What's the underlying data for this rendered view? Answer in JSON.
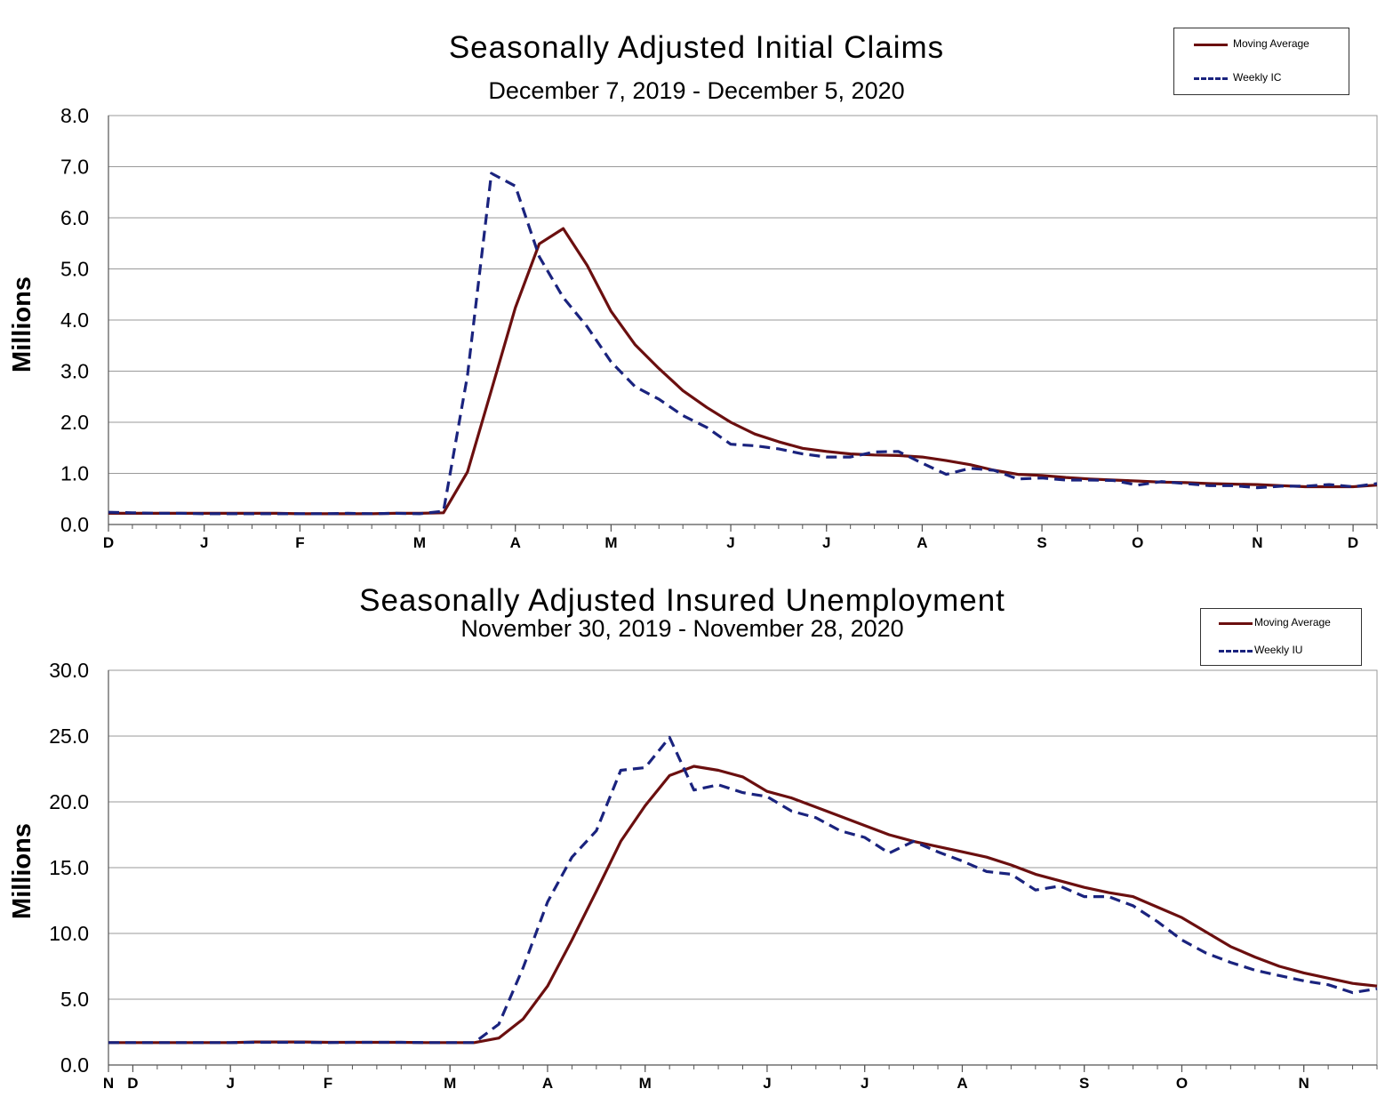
{
  "colors": {
    "moving_average": "#6b0f0f",
    "weekly": "#1a237e",
    "grid": "#9a9a9a",
    "axis": "#555555"
  },
  "chart_data": [
    {
      "type": "line",
      "title": "Seasonally Adjusted Initial Claims",
      "subtitle": "December 7, 2019 - December 5, 2020",
      "ylabel": "Millions",
      "xlabel": "",
      "ylim": [
        0,
        8
      ],
      "yticks": [
        "0.0",
        "1.0",
        "2.0",
        "3.0",
        "4.0",
        "5.0",
        "6.0",
        "7.0",
        "8.0"
      ],
      "grid": true,
      "legend_position": "top-right",
      "x_month_ticks": [
        {
          "label": "D",
          "week": 0
        },
        {
          "label": "J",
          "week": 4
        },
        {
          "label": "F",
          "week": 8
        },
        {
          "label": "M",
          "week": 13
        },
        {
          "label": "A",
          "week": 17
        },
        {
          "label": "M",
          "week": 21
        },
        {
          "label": "J",
          "week": 26
        },
        {
          "label": "J",
          "week": 30
        },
        {
          "label": "A",
          "week": 34
        },
        {
          "label": "S",
          "week": 39
        },
        {
          "label": "O",
          "week": 43
        },
        {
          "label": "N",
          "week": 48
        },
        {
          "label": "D",
          "week": 52
        }
      ],
      "series": [
        {
          "name": "Moving Average",
          "style": "solid",
          "values": [
            0.22,
            0.22,
            0.22,
            0.22,
            0.22,
            0.22,
            0.22,
            0.22,
            0.21,
            0.21,
            0.21,
            0.21,
            0.22,
            0.22,
            0.23,
            1.03,
            2.63,
            4.24,
            5.49,
            5.79,
            5.07,
            4.17,
            3.52,
            3.05,
            2.62,
            2.29,
            2.0,
            1.77,
            1.62,
            1.49,
            1.43,
            1.38,
            1.36,
            1.35,
            1.32,
            1.25,
            1.17,
            1.06,
            0.98,
            0.96,
            0.92,
            0.89,
            0.87,
            0.85,
            0.83,
            0.82,
            0.8,
            0.79,
            0.78,
            0.76,
            0.74,
            0.74,
            0.74,
            0.77
          ]
        },
        {
          "name": "Weekly IC",
          "style": "dashed",
          "values": [
            0.24,
            0.23,
            0.22,
            0.22,
            0.21,
            0.21,
            0.21,
            0.21,
            0.21,
            0.21,
            0.22,
            0.21,
            0.22,
            0.21,
            0.26,
            2.92,
            6.87,
            6.62,
            5.24,
            4.44,
            3.87,
            3.18,
            2.7,
            2.45,
            2.13,
            1.9,
            1.57,
            1.54,
            1.48,
            1.38,
            1.32,
            1.32,
            1.42,
            1.43,
            1.2,
            0.98,
            1.1,
            1.06,
            0.89,
            0.91,
            0.87,
            0.87,
            0.86,
            0.77,
            0.84,
            0.8,
            0.76,
            0.76,
            0.72,
            0.75,
            0.75,
            0.78,
            0.74,
            0.8
          ]
        }
      ]
    },
    {
      "type": "line",
      "title": "Seasonally Adjusted Insured Unemployment",
      "subtitle": "November 30, 2019 - November 28, 2020",
      "ylabel": "Millions",
      "xlabel": "",
      "ylim": [
        0,
        30
      ],
      "yticks": [
        "0.0",
        "5.0",
        "10.0",
        "15.0",
        "20.0",
        "25.0",
        "30.0"
      ],
      "grid": true,
      "legend_position": "top-right",
      "x_month_ticks": [
        {
          "label": "N",
          "week": 0
        },
        {
          "label": "D",
          "week": 1
        },
        {
          "label": "J",
          "week": 5
        },
        {
          "label": "F",
          "week": 9
        },
        {
          "label": "M",
          "week": 14
        },
        {
          "label": "A",
          "week": 18
        },
        {
          "label": "M",
          "week": 22
        },
        {
          "label": "J",
          "week": 27
        },
        {
          "label": "J",
          "week": 31
        },
        {
          "label": "A",
          "week": 35
        },
        {
          "label": "S",
          "week": 40
        },
        {
          "label": "O",
          "week": 44
        },
        {
          "label": "N",
          "week": 49
        }
      ],
      "series": [
        {
          "name": "Moving Average",
          "style": "solid",
          "values": [
            1.7,
            1.7,
            1.7,
            1.7,
            1.7,
            1.7,
            1.75,
            1.75,
            1.75,
            1.72,
            1.72,
            1.72,
            1.72,
            1.7,
            1.7,
            1.7,
            2.05,
            3.5,
            6.0,
            9.5,
            13.2,
            17.0,
            19.7,
            22.0,
            22.7,
            22.4,
            21.9,
            20.8,
            20.3,
            19.6,
            18.9,
            18.2,
            17.5,
            17.0,
            16.6,
            16.2,
            15.8,
            15.2,
            14.5,
            14.0,
            13.5,
            13.1,
            12.8,
            12.0,
            11.2,
            10.1,
            9.0,
            8.2,
            7.5,
            7.0,
            6.6,
            6.2,
            6.0
          ]
        },
        {
          "name": "Weekly IU",
          "style": "dashed",
          "values": [
            1.7,
            1.7,
            1.7,
            1.7,
            1.7,
            1.7,
            1.72,
            1.72,
            1.72,
            1.7,
            1.72,
            1.72,
            1.72,
            1.7,
            1.7,
            1.7,
            3.1,
            7.4,
            12.4,
            15.8,
            17.8,
            22.4,
            22.6,
            24.9,
            20.9,
            21.3,
            20.7,
            20.4,
            19.3,
            18.8,
            17.8,
            17.3,
            16.1,
            17.0,
            16.2,
            15.5,
            14.7,
            14.5,
            13.3,
            13.6,
            12.8,
            12.8,
            12.1,
            10.9,
            9.5,
            8.5,
            7.8,
            7.2,
            6.8,
            6.4,
            6.1,
            5.5,
            5.8
          ]
        }
      ]
    }
  ]
}
